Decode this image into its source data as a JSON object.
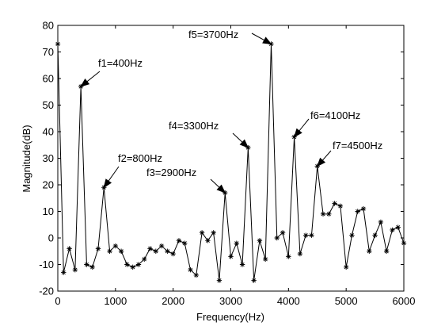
{
  "chart_data": {
    "type": "line",
    "title": "",
    "xlabel": "Frequency(Hz)",
    "ylabel": "Magnitude(dB)",
    "xlim": [
      0,
      6000
    ],
    "ylim": [
      -20,
      80
    ],
    "xticks": [
      0,
      1000,
      2000,
      3000,
      4000,
      5000,
      6000
    ],
    "yticks": [
      -20,
      -10,
      0,
      10,
      20,
      30,
      40,
      50,
      60,
      70,
      80
    ],
    "grid": false,
    "legend": "none",
    "line_color": "#000000",
    "marker": "asterisk",
    "series": [
      {
        "x": [
          0,
          100,
          200,
          300,
          400,
          500,
          600,
          700,
          800,
          900,
          1000,
          1100,
          1200,
          1300,
          1400,
          1500,
          1600,
          1700,
          1800,
          1900,
          2000,
          2100,
          2200,
          2300,
          2400,
          2500,
          2600,
          2700,
          2800,
          2900,
          3000,
          3100,
          3200,
          3300,
          3400,
          3500,
          3600,
          3700,
          3800,
          3900,
          4000,
          4100,
          4200,
          4300,
          4400,
          4500,
          4600,
          4700,
          4800,
          4900,
          5000,
          5100,
          5200,
          5300,
          5400,
          5500,
          5600,
          5700,
          5800,
          5900,
          6000
        ],
        "y": [
          73,
          -13,
          -4,
          -12,
          57,
          -10,
          -11,
          -4,
          19,
          -5,
          -3,
          -5,
          -10,
          -11,
          -10,
          -8,
          -4,
          -5,
          -3,
          -5,
          -6,
          -1,
          -2,
          -12,
          -14,
          2,
          -1,
          2,
          -16,
          17,
          -7,
          -2,
          -10,
          34,
          -16,
          -1,
          -8,
          73,
          0,
          2,
          -7,
          38,
          -6,
          1,
          1,
          27,
          9,
          9,
          13,
          12,
          -11,
          1,
          10,
          11,
          -5,
          1,
          6,
          -5,
          3,
          4,
          -2
        ]
      }
    ],
    "annotations": [
      {
        "text": "f1=400Hz",
        "x": 400,
        "y": 57
      },
      {
        "text": "f2=800Hz",
        "x": 800,
        "y": 19
      },
      {
        "text": "f3=2900Hz",
        "x": 2900,
        "y": 17
      },
      {
        "text": "f4=3300Hz",
        "x": 3300,
        "y": 34
      },
      {
        "text": "f5=3700Hz",
        "x": 3700,
        "y": 73
      },
      {
        "text": "f6=4100Hz",
        "x": 4100,
        "y": 38
      },
      {
        "text": "f7=4500Hz",
        "x": 4500,
        "y": 27
      }
    ]
  }
}
